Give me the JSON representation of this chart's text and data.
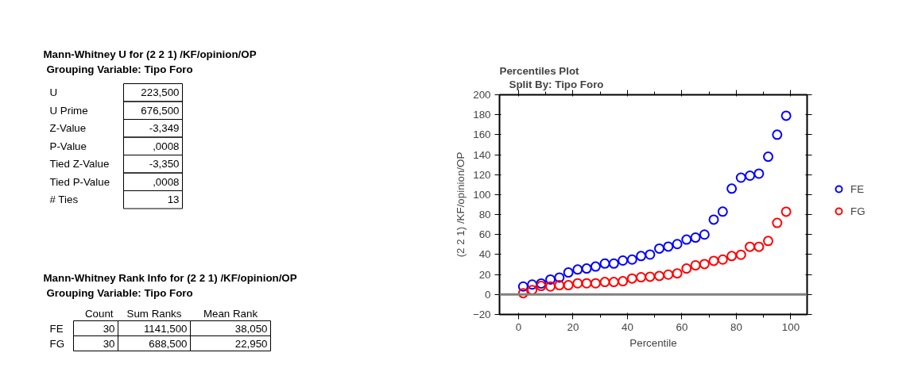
{
  "chart_data": [
    {
      "type": "other",
      "title": "Mann-Whitney U for (2 2 1) /KF/opinion/OP",
      "subtitle": "Grouping Variable: Tipo Foro",
      "annotations": [
        "U",
        "223,500",
        "U Prime",
        "676,500",
        "Z-Value",
        "-3,349",
        "P-Value",
        ",0008",
        "Tied Z-Value",
        "-3,350",
        "Tied P-Value",
        ",0008",
        "# Ties",
        "13"
      ]
    },
    {
      "type": "other",
      "title": "Mann-Whitney Rank Info for (2 2 1) /KF/opinion/OP",
      "subtitle": "Grouping Variable: Tipo Foro",
      "annotations": [
        "Count",
        "Sum Ranks",
        "Mean Rank",
        "FE",
        "30",
        "1141,500",
        "38,050",
        "FG",
        "30",
        "688,500",
        "22,950"
      ]
    },
    {
      "type": "scatter",
      "title": "Percentiles Plot",
      "subtitle": "Split By: Tipo Foro",
      "xlabel": "Percentile",
      "ylabel": "(2 2 1) /KF/opinion/OP",
      "x": [
        1.7,
        5,
        8.3,
        11.7,
        15,
        18.3,
        21.7,
        25,
        28.3,
        31.7,
        35,
        38.3,
        41.7,
        45,
        48.3,
        51.7,
        55,
        58.3,
        61.7,
        65,
        68.3,
        71.7,
        75,
        78.3,
        81.7,
        85,
        88.3,
        91.7,
        95,
        98.3
      ],
      "series": [
        {
          "name": "FE",
          "color": "#0000ff",
          "values": [
            8,
            10,
            11,
            15,
            17,
            22,
            25,
            26,
            28,
            31,
            31,
            34,
            35,
            38.5,
            40,
            46,
            48,
            50.5,
            55,
            57,
            60,
            75,
            83,
            106,
            117,
            119,
            121,
            138,
            160,
            179
          ]
        },
        {
          "name": "FG",
          "color": "#ff0000",
          "values": [
            1.3,
            4.5,
            8.5,
            8,
            9.3,
            9.3,
            11.2,
            11.2,
            11.2,
            12.5,
            12.5,
            13.3,
            16,
            17.3,
            17.8,
            18.6,
            19.9,
            21.2,
            26,
            29.2,
            30.5,
            33.7,
            35,
            38.5,
            39.8,
            47.8,
            47.8,
            53.6,
            71.7,
            82.9
          ]
        }
      ],
      "xlim": [
        -7,
        106
      ],
      "ylim": [
        -20,
        200
      ],
      "xticks": [
        0,
        20,
        40,
        60,
        80,
        100
      ],
      "yticks": [
        -20,
        0,
        20,
        40,
        60,
        80,
        100,
        120,
        140,
        160,
        180,
        200
      ],
      "ref_lines": [
        {
          "axis": "y",
          "value": 0,
          "color": "#808080"
        }
      ],
      "grid": false,
      "legend": "right",
      "marker": "circle"
    }
  ]
}
